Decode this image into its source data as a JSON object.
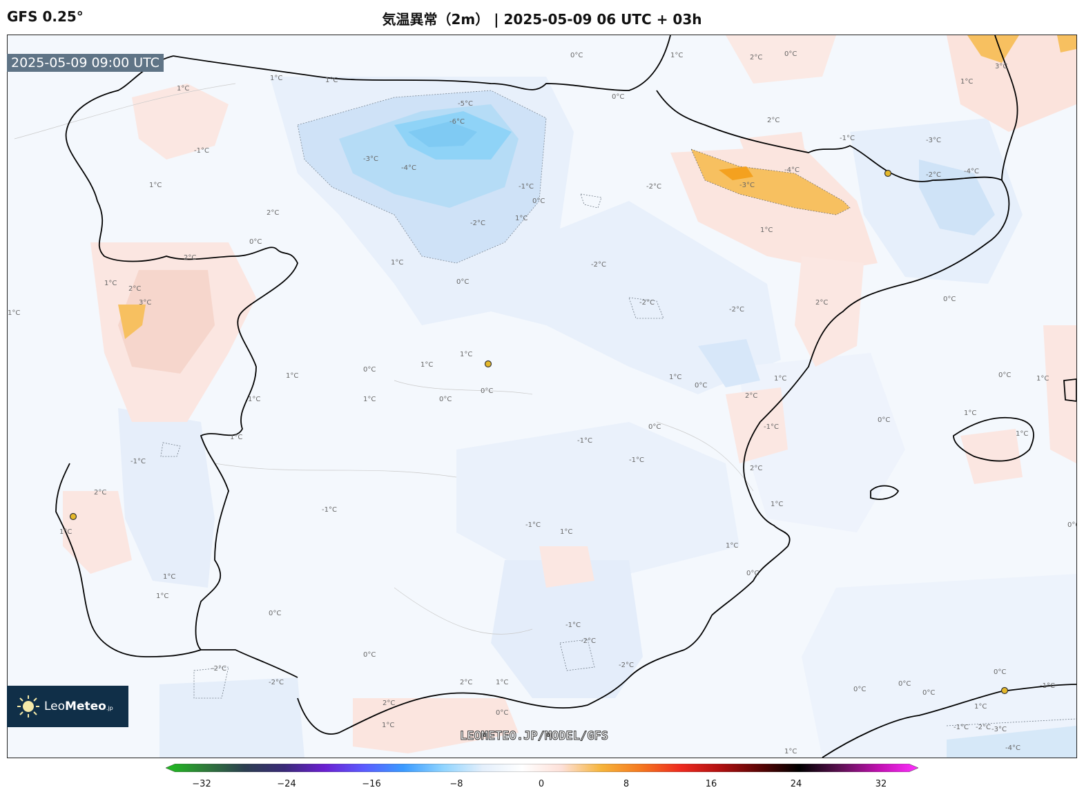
{
  "header": {
    "model": "GFS 0.25°",
    "title": "気温異常（2m） | 2025-05-09 06 UTC + 03h"
  },
  "map": {
    "valid_time": "2025-05-09 09:00 UTC",
    "watermark": "LEOMETEO.JP/MODEL/GFS",
    "logo": {
      "name_plain": "Leo",
      "name_bold": "Meteo",
      "suffix": ".jp",
      "icon": "sun-icon"
    },
    "contour_labels": [
      "0°C",
      "1°C",
      "2°C",
      "3°C",
      "-1°C",
      "-2°C",
      "-3°C",
      "-4°C",
      "-5°C",
      "-6°C"
    ],
    "colors": {
      "warm_light": "#fbe6e1",
      "warm_mid": "#f6d2c8",
      "warm_strong": "#f7c060",
      "warm_peak": "#f4a11f",
      "cold_light": "#e8f0fb",
      "cold_mid": "#cfe2f7",
      "cold_strong": "#a8d8f5",
      "cold_peak": "#7fd0f6",
      "coastline": "#000000",
      "city_marker": "#e5b82a"
    }
  },
  "colorbar": {
    "tick_labels": [
      "−32",
      "−24",
      "−16",
      "−8",
      "0",
      "8",
      "16",
      "24",
      "32"
    ],
    "min": -32,
    "max": 32,
    "stops": [
      "#1fbf1f",
      "#2f7a3a",
      "#2c3e50",
      "#3a2a78",
      "#6a1fd0",
      "#5b5bff",
      "#3a9bff",
      "#8fd4ff",
      "#e4effb",
      "#ffffff",
      "#fde0d8",
      "#f6b43a",
      "#f5781f",
      "#ee2a1f",
      "#b01010",
      "#5a0505",
      "#000000",
      "#5a1050",
      "#c010b0",
      "#ff30ff"
    ]
  }
}
